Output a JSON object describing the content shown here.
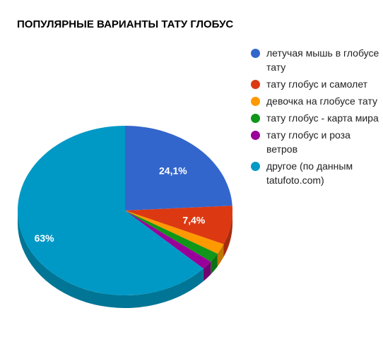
{
  "chart_data": {
    "type": "pie",
    "title": "ПОПУЛЯРНЫЕ ВАРИАНТЫ ТАТУ ГЛОБУС",
    "three_d": true,
    "legend_position": "right",
    "slices": [
      {
        "label": "летучая мышь в глобусе тату",
        "value": 24.1,
        "display": "24,1%",
        "color": "#3366cc",
        "side_color": "#274f9c"
      },
      {
        "label": "тату глобус и самолет",
        "value": 7.4,
        "display": "7,4%",
        "color": "#dc3912",
        "side_color": "#a62b0e"
      },
      {
        "label": "девочка на глобусе тату",
        "value": 2.0,
        "display": "",
        "color": "#ff9900",
        "side_color": "#c27400"
      },
      {
        "label": "тату глобус - карта мира",
        "value": 1.8,
        "display": "",
        "color": "#109618",
        "side_color": "#0c7112"
      },
      {
        "label": "тату глобус и роза ветров",
        "value": 1.7,
        "display": "",
        "color": "#990099",
        "side_color": "#730073"
      },
      {
        "label": "другое (по данным tatufoto.com)",
        "value": 63.0,
        "display": "63%",
        "color": "#0099c6",
        "side_color": "#007595"
      }
    ]
  }
}
